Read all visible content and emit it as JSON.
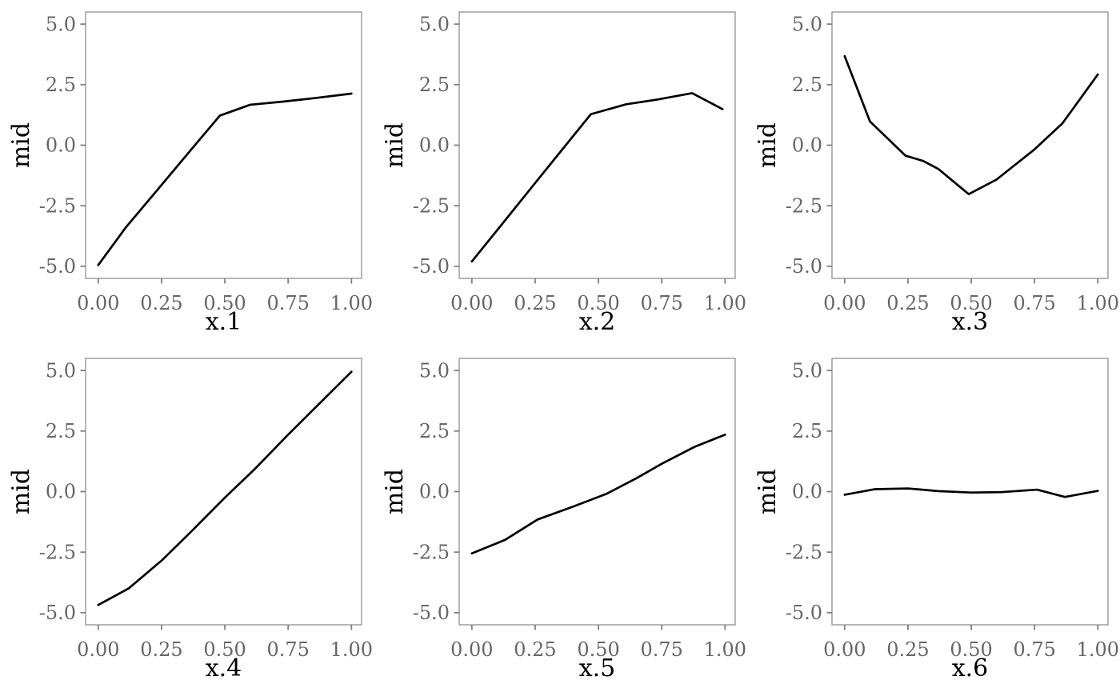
{
  "figure": {
    "background": "#ffffff",
    "panel_border_color": "#8f8f8f",
    "tick_mark_color": "#808080",
    "tick_label_color": "#666666",
    "axis_title_color": "#000000",
    "line_color": "#000000"
  },
  "chart_data": [
    {
      "type": "line",
      "title": "",
      "xlabel": "x.1",
      "ylabel": "mid",
      "xlim": [
        -0.05,
        1.04
      ],
      "ylim": [
        -5.5,
        5.5
      ],
      "grid": false,
      "legend": "none",
      "xtick_values": [
        0,
        0.25,
        0.5,
        0.75,
        1.0
      ],
      "xtick_labels": [
        "0.00",
        "0.25",
        "0.50",
        "0.75",
        "1.00"
      ],
      "ytick_values": [
        5.0,
        2.5,
        0.0,
        -2.5,
        -5.0
      ],
      "ytick_labels": [
        "5.0",
        "2.5",
        "0.0",
        "-2.5",
        "-5.0"
      ],
      "x": [
        0.0,
        0.11,
        0.23,
        0.36,
        0.48,
        0.6,
        0.73,
        0.86,
        1.0
      ],
      "y": [
        -4.95,
        -3.38,
        -1.89,
        -0.27,
        1.22,
        1.67,
        1.8,
        1.95,
        2.13
      ]
    },
    {
      "type": "line",
      "title": "",
      "xlabel": "x.2",
      "ylabel": "mid",
      "xlim": [
        -0.05,
        1.04
      ],
      "ylim": [
        -5.5,
        5.5
      ],
      "grid": false,
      "legend": "none",
      "xtick_values": [
        0,
        0.25,
        0.5,
        0.75,
        1.0
      ],
      "xtick_labels": [
        "0.00",
        "0.25",
        "0.50",
        "0.75",
        "1.00"
      ],
      "ytick_values": [
        5.0,
        2.5,
        0.0,
        -2.5,
        -5.0
      ],
      "ytick_labels": [
        "5.0",
        "2.5",
        "0.0",
        "-2.5",
        "-5.0"
      ],
      "x": [
        0.0,
        0.12,
        0.24,
        0.36,
        0.47,
        0.61,
        0.73,
        0.87,
        0.99
      ],
      "y": [
        -4.8,
        -3.25,
        -1.69,
        -0.14,
        1.28,
        1.69,
        1.88,
        2.15,
        1.49
      ]
    },
    {
      "type": "line",
      "title": "",
      "xlabel": "x.3",
      "ylabel": "mid",
      "xlim": [
        -0.05,
        1.04
      ],
      "ylim": [
        -5.5,
        5.5
      ],
      "grid": false,
      "legend": "none",
      "xtick_values": [
        0,
        0.25,
        0.5,
        0.75,
        1.0
      ],
      "xtick_labels": [
        "0.00",
        "0.25",
        "0.50",
        "0.75",
        "1.00"
      ],
      "ytick_values": [
        5.0,
        2.5,
        0.0,
        -2.5,
        -5.0
      ],
      "ytick_labels": [
        "5.0",
        "2.5",
        "0.0",
        "-2.5",
        "-5.0"
      ],
      "x": [
        0.0,
        0.1,
        0.24,
        0.31,
        0.37,
        0.49,
        0.6,
        0.75,
        0.86,
        1.0
      ],
      "y": [
        3.68,
        0.98,
        -0.43,
        -0.65,
        -0.98,
        -2.02,
        -1.42,
        -0.17,
        0.9,
        2.92
      ]
    },
    {
      "type": "line",
      "title": "",
      "xlabel": "x.4",
      "ylabel": "mid",
      "xlim": [
        -0.05,
        1.04
      ],
      "ylim": [
        -5.5,
        5.5
      ],
      "grid": false,
      "legend": "none",
      "xtick_values": [
        0,
        0.25,
        0.5,
        0.75,
        1.0
      ],
      "xtick_labels": [
        "0.00",
        "0.25",
        "0.50",
        "0.75",
        "1.00"
      ],
      "ytick_values": [
        5.0,
        2.5,
        0.0,
        -2.5,
        -5.0
      ],
      "ytick_labels": [
        "5.0",
        "2.5",
        "0.0",
        "-2.5",
        "-5.0"
      ],
      "x": [
        0.0,
        0.12,
        0.25,
        0.37,
        0.5,
        0.62,
        0.75,
        0.87,
        1.0
      ],
      "y": [
        -4.68,
        -4.0,
        -2.85,
        -1.62,
        -0.25,
        0.95,
        2.35,
        3.6,
        4.95
      ]
    },
    {
      "type": "line",
      "title": "",
      "xlabel": "x.5",
      "ylabel": "mid",
      "xlim": [
        -0.05,
        1.04
      ],
      "ylim": [
        -5.5,
        5.5
      ],
      "grid": false,
      "legend": "none",
      "xtick_values": [
        0,
        0.25,
        0.5,
        0.75,
        1.0
      ],
      "xtick_labels": [
        "0.00",
        "0.25",
        "0.50",
        "0.75",
        "1.00"
      ],
      "ytick_values": [
        5.0,
        2.5,
        0.0,
        -2.5,
        -5.0
      ],
      "ytick_labels": [
        "5.0",
        "2.5",
        "0.0",
        "-2.5",
        "-5.0"
      ],
      "x": [
        0.0,
        0.13,
        0.26,
        0.4,
        0.53,
        0.65,
        0.75,
        0.88,
        1.0
      ],
      "y": [
        -2.55,
        -2.0,
        -1.15,
        -0.62,
        -0.1,
        0.55,
        1.15,
        1.85,
        2.35
      ]
    },
    {
      "type": "line",
      "title": "",
      "xlabel": "x.6",
      "ylabel": "mid",
      "xlim": [
        -0.05,
        1.04
      ],
      "ylim": [
        -5.5,
        5.5
      ],
      "grid": false,
      "legend": "none",
      "xtick_values": [
        0,
        0.25,
        0.5,
        0.75,
        1.0
      ],
      "xtick_labels": [
        "0.00",
        "0.25",
        "0.50",
        "0.75",
        "1.00"
      ],
      "ytick_values": [
        5.0,
        2.5,
        0.0,
        -2.5,
        -5.0
      ],
      "ytick_labels": [
        "5.0",
        "2.5",
        "0.0",
        "-2.5",
        "-5.0"
      ],
      "x": [
        0.0,
        0.12,
        0.25,
        0.37,
        0.5,
        0.62,
        0.76,
        0.87,
        1.0
      ],
      "y": [
        -0.13,
        0.1,
        0.13,
        0.02,
        -0.04,
        -0.02,
        0.08,
        -0.22,
        0.03
      ]
    }
  ]
}
